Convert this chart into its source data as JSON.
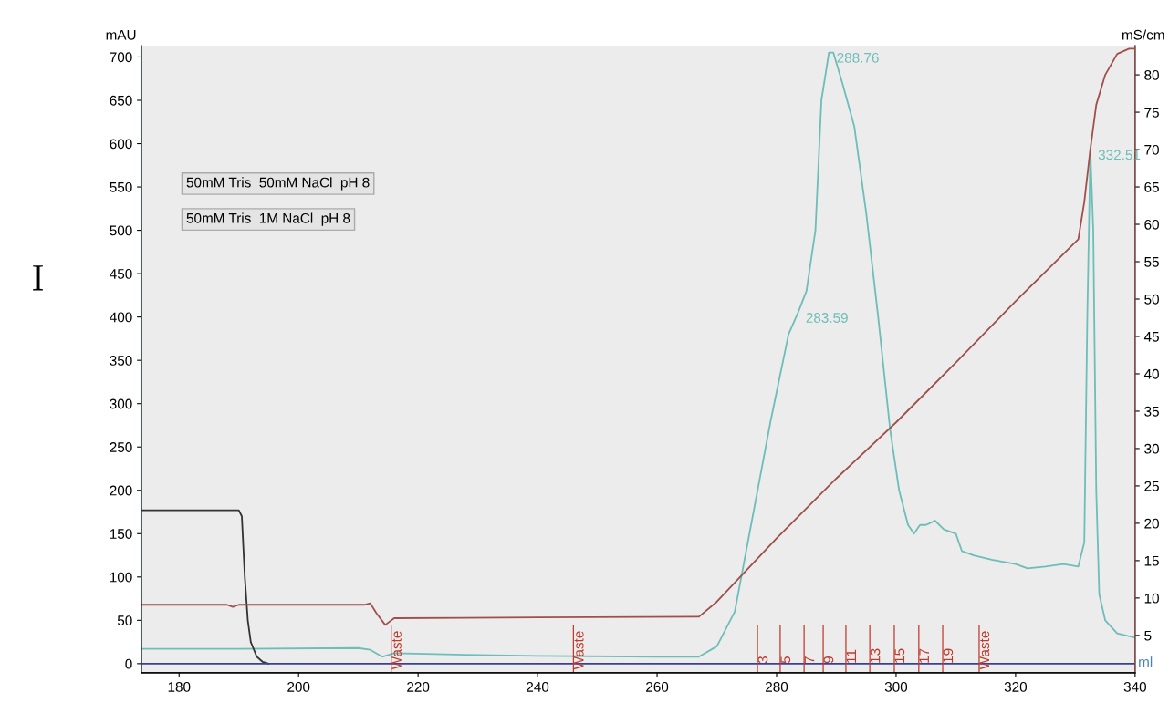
{
  "chart_data": {
    "type": "line",
    "xlabel": "ml",
    "ylabel": "mAU",
    "y2label": "mS/cm",
    "xlim": [
      173.7,
      340
    ],
    "xticks": [
      180,
      200,
      220,
      240,
      260,
      280,
      300,
      320,
      340
    ],
    "ylim": [
      -10.5,
      713
    ],
    "yticks": [
      0,
      50,
      100,
      150,
      200,
      250,
      300,
      350,
      400,
      450,
      500,
      550,
      600,
      650,
      700
    ],
    "y2lim": [
      0,
      83.9
    ],
    "y2ticks": [
      5,
      10,
      15,
      20,
      25,
      30,
      35,
      40,
      45,
      50,
      55,
      60,
      65,
      70,
      75,
      80
    ],
    "grid": false,
    "line_style": "solid",
    "marker": "none",
    "series": [
      {
        "color": "#6dbdb8",
        "x": [
          173.7,
          190,
          210,
          212,
          214,
          216,
          230,
          240,
          260,
          267,
          270,
          273,
          276,
          279,
          282,
          283.59,
          285,
          286.5,
          287.5,
          288.76,
          289.5,
          291,
          293,
          295,
          297,
          299,
          300.5,
          302,
          303,
          304,
          305,
          306.5,
          308,
          310,
          311,
          313,
          316,
          320,
          322,
          325,
          328,
          330.5,
          331.5,
          332,
          332.51,
          333,
          333.5,
          334,
          335,
          337,
          340
        ],
        "values": [
          17,
          17,
          18,
          16,
          8,
          12,
          10,
          9,
          8,
          8,
          20,
          60,
          170,
          280,
          380,
          405,
          430,
          500,
          650,
          705,
          705,
          670,
          620,
          520,
          400,
          270,
          200,
          160,
          150,
          160,
          160,
          165,
          155,
          150,
          130,
          125,
          120,
          115,
          110,
          112,
          115,
          112,
          140,
          400,
          593,
          500,
          200,
          80,
          50,
          35,
          30
        ]
      },
      {
        "color": "#a0504a",
        "axis": "y2",
        "x": [
          173.7,
          188,
          189,
          190,
          211,
          212,
          213,
          214.5,
          216,
          240,
          267,
          270,
          280,
          290,
          300,
          310,
          320,
          330.5,
          331.5,
          332.5,
          333.5,
          335,
          337,
          339,
          340
        ],
        "values": [
          9.1,
          9.1,
          8.8,
          9.1,
          9.1,
          9.3,
          8,
          6.4,
          7.3,
          7.4,
          7.5,
          9.5,
          18,
          26,
          33.5,
          41.5,
          49.7,
          58,
          63,
          70,
          76,
          80,
          82.8,
          83.5,
          83.5
        ]
      },
      {
        "color": "#333333",
        "x": [
          173.7,
          190,
          190.5,
          191,
          191.5,
          192,
          193,
          194,
          195
        ],
        "values": [
          177,
          177,
          170,
          100,
          50,
          25,
          8,
          2,
          0
        ]
      },
      {
        "color": "#3a3f9a",
        "x": [
          173.7,
          340
        ],
        "values": [
          0,
          0
        ]
      }
    ],
    "ref_lines": [
      {
        "axis": "x",
        "value": 215.5,
        "label": "Waste",
        "color": "#c0392b"
      },
      {
        "axis": "x",
        "value": 246,
        "label": "Waste",
        "color": "#c0392b"
      },
      {
        "axis": "x",
        "value": 313.9,
        "label": "Waste",
        "color": "#c0392b"
      }
    ],
    "annotations": [
      "50mM Tris  50mM NaCl  pH 8",
      "50mM Tris  1M NaCl  pH 8",
      "I",
      {
        "text": "283.59",
        "x": 283.59,
        "y": 405
      },
      {
        "text": "288.76",
        "x": 288.76,
        "y": 705
      },
      {
        "text": "332.51",
        "x": 332.51,
        "y": 593
      },
      {
        "text": "3",
        "x": 276.8,
        "y": 0
      },
      {
        "text": "5",
        "x": 280.6,
        "y": 0
      },
      {
        "text": "7",
        "x": 284.6,
        "y": 0
      },
      {
        "text": "9",
        "x": 287.8,
        "y": 0
      },
      {
        "text": "11",
        "x": 291.6,
        "y": 0
      },
      {
        "text": "13",
        "x": 295.6,
        "y": 0
      },
      {
        "text": "15",
        "x": 299.7,
        "y": 0
      },
      {
        "text": "17",
        "x": 303.8,
        "y": 0
      },
      {
        "text": "19",
        "x": 307.8,
        "y": 0
      }
    ]
  }
}
